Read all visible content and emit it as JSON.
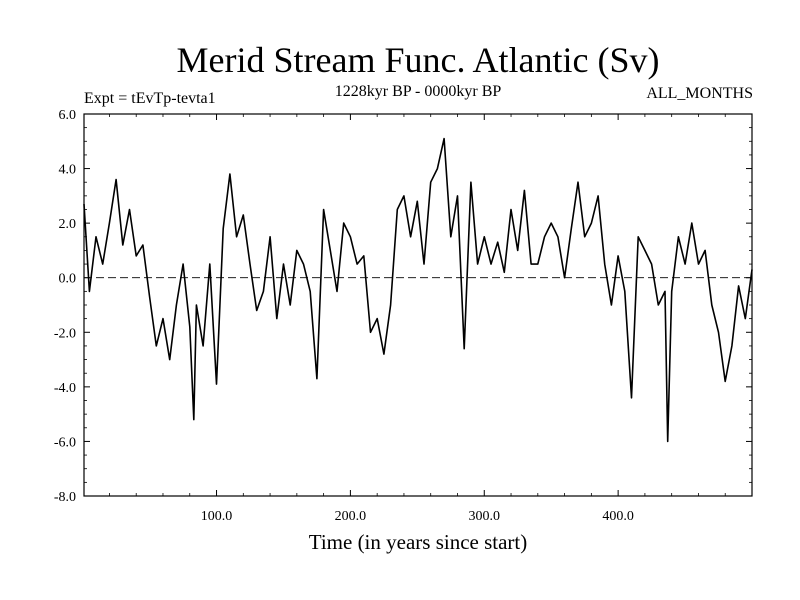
{
  "chart_data": {
    "type": "line",
    "title": "Merid Stream Func. Atlantic (Sv)",
    "experiment_label": "Expt = tEvTp-tevta1",
    "period_label": "1228kyr BP - 0000kyr BP",
    "months_label": "ALL_MONTHS",
    "xlabel": "Time (in years since start)",
    "ylabel": "",
    "xlim": [
      1,
      500
    ],
    "ylim": [
      -8.0,
      6.0
    ],
    "x_ticks": [
      100,
      200,
      300,
      400
    ],
    "x_tick_labels": [
      "100.0",
      "200.0",
      "300.0",
      "400.0"
    ],
    "y_ticks": [
      -8,
      -6,
      -4,
      -2,
      0,
      2,
      4,
      6
    ],
    "y_tick_labels": [
      "-8.0",
      "-6.0",
      "-4.0",
      "-2.0",
      "0.0",
      "2.0",
      "4.0",
      "6.0"
    ],
    "reference_line": 0.0,
    "series": [
      {
        "name": "Merid Stream Func. Atlantic",
        "x": [
          1,
          5,
          10,
          15,
          20,
          25,
          30,
          35,
          40,
          45,
          50,
          55,
          60,
          65,
          70,
          75,
          80,
          83,
          85,
          90,
          95,
          100,
          103,
          105,
          110,
          115,
          120,
          125,
          130,
          135,
          140,
          145,
          150,
          155,
          160,
          165,
          170,
          175,
          180,
          185,
          190,
          195,
          200,
          205,
          210,
          215,
          220,
          225,
          230,
          235,
          240,
          245,
          250,
          255,
          260,
          265,
          270,
          275,
          280,
          285,
          290,
          295,
          300,
          305,
          310,
          315,
          320,
          325,
          330,
          335,
          340,
          345,
          350,
          355,
          360,
          365,
          370,
          375,
          380,
          385,
          390,
          395,
          400,
          405,
          410,
          415,
          420,
          425,
          430,
          435,
          437,
          440,
          445,
          450,
          455,
          460,
          465,
          470,
          475,
          480,
          485,
          490,
          495,
          500
        ],
        "values": [
          2.7,
          -0.5,
          1.5,
          0.5,
          2.0,
          3.6,
          1.2,
          2.5,
          0.8,
          1.2,
          -0.7,
          -2.5,
          -1.5,
          -3.0,
          -1.0,
          0.5,
          -1.8,
          -5.2,
          -1.0,
          -2.5,
          0.5,
          -3.9,
          -0.5,
          1.8,
          3.8,
          1.5,
          2.3,
          0.5,
          -1.2,
          -0.5,
          1.5,
          -1.5,
          0.5,
          -1.0,
          1.0,
          0.5,
          -0.5,
          -3.7,
          2.5,
          1.0,
          -0.5,
          2.0,
          1.5,
          0.5,
          0.8,
          -2.0,
          -1.5,
          -2.8,
          -1.0,
          2.5,
          3.0,
          1.5,
          2.8,
          0.5,
          3.5,
          4.0,
          5.1,
          1.5,
          3.0,
          -2.6,
          3.5,
          0.5,
          1.5,
          0.5,
          1.3,
          0.2,
          2.5,
          1.0,
          3.2,
          0.5,
          0.5,
          1.5,
          2.0,
          1.5,
          0.0,
          1.8,
          3.5,
          1.5,
          2.0,
          3.0,
          0.5,
          -1.0,
          0.8,
          -0.5,
          -4.4,
          1.5,
          1.0,
          0.5,
          -1.0,
          -0.5,
          -6.0,
          -0.5,
          1.5,
          0.5,
          2.0,
          0.5,
          1.0,
          -1.0,
          -2.0,
          -3.8,
          -2.5,
          -0.3,
          -1.5,
          0.3
        ]
      }
    ]
  }
}
